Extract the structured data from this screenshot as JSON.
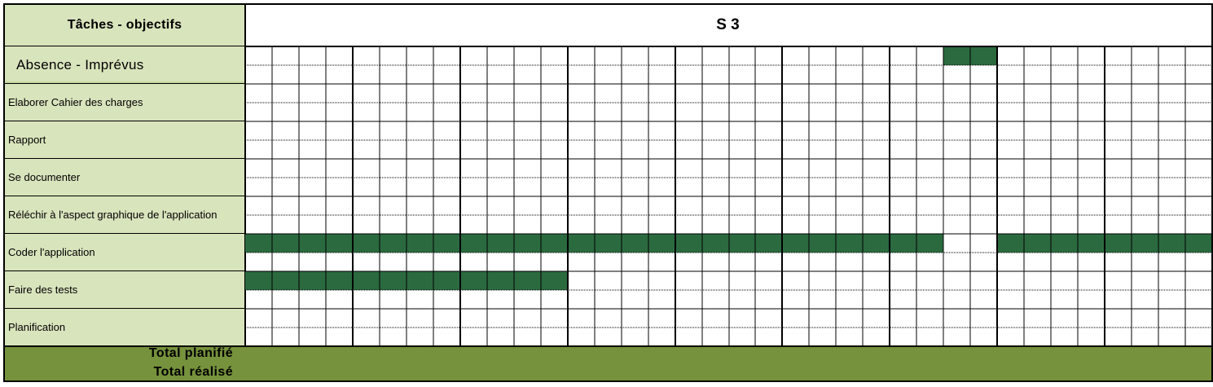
{
  "header": {
    "tasks_title": "Tâches - objectifs",
    "week_label": "S 3"
  },
  "rows": [
    {
      "label": "Absence - Imprévus",
      "style": "absence",
      "filled_top": [
        26,
        27
      ],
      "filled_bottom": []
    },
    {
      "label": "Elaborer Cahier des charges",
      "filled_top": [],
      "filled_bottom": []
    },
    {
      "label": "Rapport",
      "filled_top": [],
      "filled_bottom": []
    },
    {
      "label": "Se documenter",
      "filled_top": [],
      "filled_bottom": []
    },
    {
      "label": "Réléchir à l'aspect graphique de l'application",
      "filled_top": [],
      "filled_bottom": []
    },
    {
      "label": "Coder l'application",
      "filled_top": [
        0,
        1,
        2,
        3,
        4,
        5,
        6,
        7,
        8,
        9,
        10,
        11,
        12,
        13,
        14,
        15,
        16,
        17,
        18,
        19,
        20,
        21,
        22,
        23,
        24,
        25,
        28,
        29,
        30,
        31,
        32,
        33,
        34,
        35
      ],
      "filled_bottom": []
    },
    {
      "label": "Faire des tests",
      "filled_top": [
        0,
        1,
        2,
        3,
        4,
        5,
        6,
        7,
        8,
        9,
        10,
        11
      ],
      "filled_bottom": []
    },
    {
      "label": "Planification",
      "filled_top": [],
      "filled_bottom": []
    }
  ],
  "footer": {
    "total_planned": "Total planifié",
    "total_done": "Total réalisé"
  },
  "grid": {
    "slots": 36,
    "slots_per_day": 4,
    "days": 9
  },
  "colors": {
    "label_bg": "#d8e4bc",
    "filled": "#2b6a3f",
    "footer_bg": "#76923c"
  }
}
